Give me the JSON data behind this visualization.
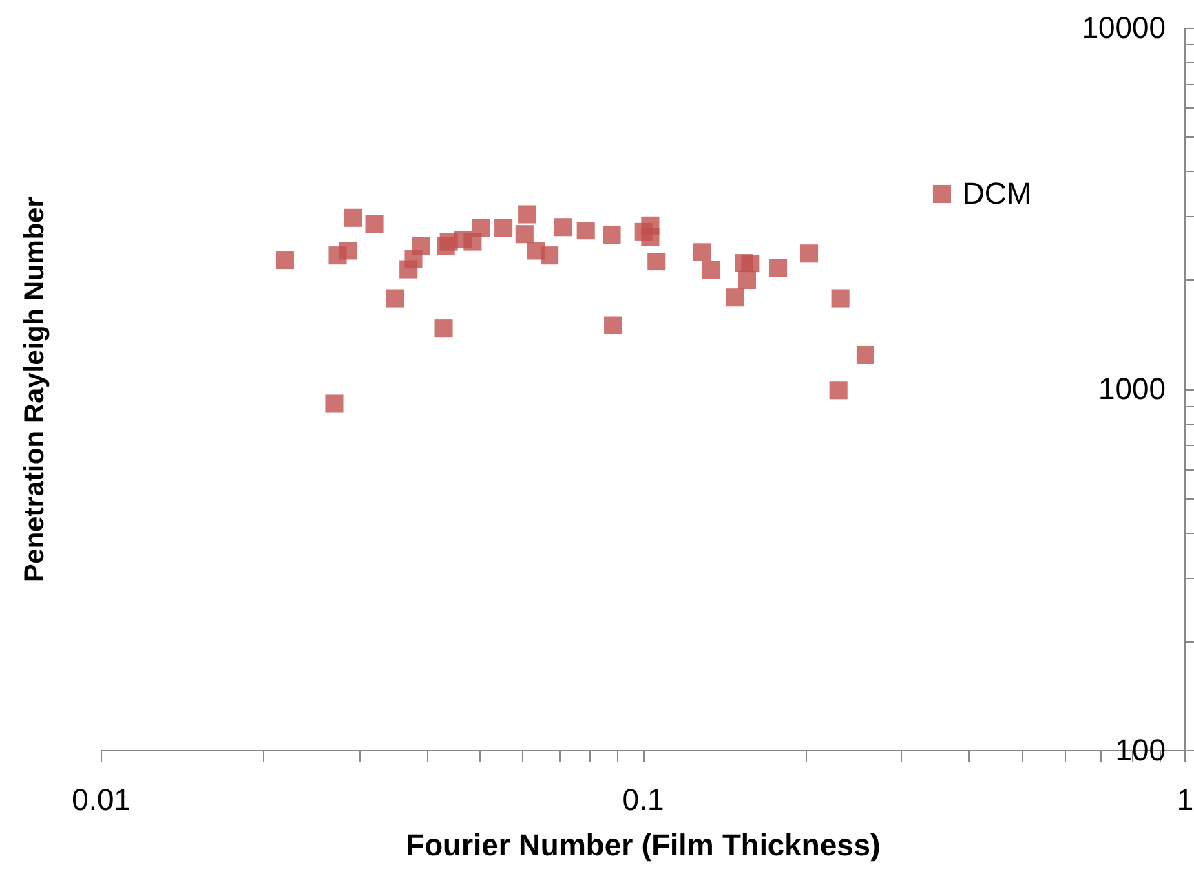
{
  "chart_data": {
    "type": "scatter",
    "xlabel": "Fourier Number (Film Thickness)",
    "ylabel": "Penetration Rayleigh Number",
    "log": "xy",
    "grid": false,
    "legend": "top right",
    "marker": "square",
    "xlim": [
      0.01,
      1
    ],
    "ylim": [
      100,
      10000
    ],
    "xticks": [
      0.01,
      {
        "value": 0.02,
        "label": null
      },
      {
        "value": 0.03,
        "label": null
      },
      {
        "value": 0.04,
        "label": null
      },
      {
        "value": 0.05,
        "label": null
      },
      {
        "value": 0.06,
        "label": null
      },
      {
        "value": 0.07,
        "label": null
      },
      {
        "value": 0.08,
        "label": null
      },
      {
        "value": 0.09,
        "label": null
      },
      0.1,
      {
        "value": 0.2,
        "label": null
      },
      {
        "value": 0.3,
        "label": null
      },
      {
        "value": 0.4,
        "label": null
      },
      {
        "value": 0.5,
        "label": null
      },
      {
        "value": 0.6,
        "label": null
      },
      {
        "value": 0.7,
        "label": null
      },
      {
        "value": 0.8,
        "label": null
      },
      {
        "value": 0.9,
        "label": null
      },
      1
    ],
    "yticks": [
      100,
      {
        "value": 200,
        "label": null
      },
      {
        "value": 300,
        "label": null
      },
      {
        "value": 400,
        "label": null
      },
      {
        "value": 500,
        "label": null
      },
      {
        "value": 600,
        "label": null
      },
      {
        "value": 700,
        "label": null
      },
      {
        "value": 800,
        "label": null
      },
      {
        "value": 900,
        "label": null
      },
      1000,
      {
        "value": 2000,
        "label": null
      },
      {
        "value": 3000,
        "label": null
      },
      {
        "value": 4000,
        "label": null
      },
      {
        "value": 5000,
        "label": null
      },
      {
        "value": 6000,
        "label": null
      },
      {
        "value": 7000,
        "label": null
      },
      {
        "value": 8000,
        "label": null
      },
      {
        "value": 9000,
        "label": null
      },
      10000
    ],
    "series": [
      {
        "name": "DCM",
        "color": "#c0504d",
        "x": [
          0.0219,
          0.0292,
          0.032,
          0.0274,
          0.0286,
          0.027,
          0.0349,
          0.037,
          0.0378,
          0.039,
          0.043,
          0.0434,
          0.0439,
          0.0466,
          0.0486,
          0.0503,
          0.0554,
          0.0612,
          0.0606,
          0.0637,
          0.0674,
          0.0714,
          0.0786,
          0.0878,
          0.0882,
          0.1005,
          0.1034,
          0.1034,
          0.1061,
          0.129,
          0.134,
          0.148,
          0.154,
          0.158,
          0.156,
          0.178,
          0.203,
          0.232,
          0.258,
          0.23
        ],
        "values": [
          2270,
          2970,
          2860,
          2340,
          2410,
          910,
          1780,
          2140,
          2280,
          2480,
          1470,
          2480,
          2550,
          2590,
          2550,
          2780,
          2780,
          3040,
          2680,
          2410,
          2340,
          2800,
          2740,
          2670,
          1500,
          2720,
          2830,
          2630,
          2250,
          2390,
          2130,
          1790,
          2230,
          2220,
          2000,
          2160,
          2370,
          1780,
          1240,
          990
        ]
      }
    ]
  }
}
